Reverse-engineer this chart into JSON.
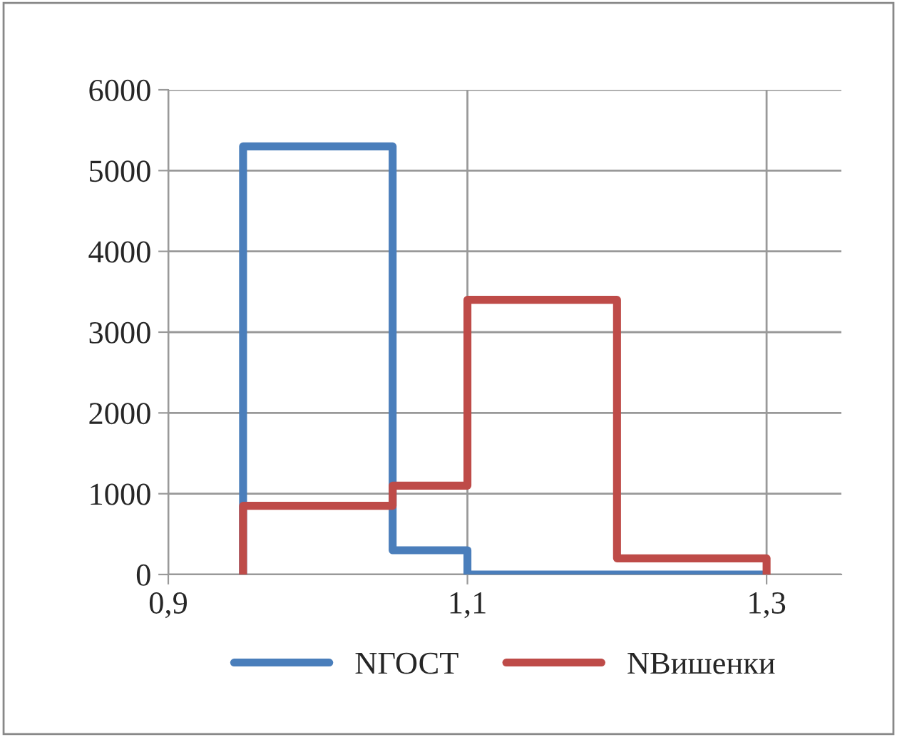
{
  "chart_data": {
    "type": "line",
    "series": [
      {
        "name": "NГОСТ",
        "color": "#4a7ebb",
        "x": [
          0.95,
          0.95,
          1.05,
          1.05,
          1.1,
          1.1,
          1.3
        ],
        "values": [
          0,
          5300,
          5300,
          300,
          300,
          0,
          0
        ]
      },
      {
        "name": "NВишенки",
        "color": "#be4b48",
        "x": [
          0.95,
          0.95,
          1.05,
          1.05,
          1.1,
          1.1,
          1.2,
          1.2,
          1.3,
          1.3
        ],
        "values": [
          0,
          850,
          850,
          1100,
          1100,
          3400,
          3400,
          200,
          200,
          0
        ]
      }
    ],
    "xlim": [
      0.9,
      1.35
    ],
    "xticks": [
      {
        "value": 0.9,
        "label": "0,9"
      },
      {
        "value": 1.1,
        "label": "1,1"
      },
      {
        "value": 1.3,
        "label": "1,3"
      }
    ],
    "ylim": [
      0,
      6000
    ],
    "yticks": [
      0,
      1000,
      2000,
      3000,
      4000,
      5000,
      6000
    ],
    "grid": true,
    "legend": "bottom",
    "marker": "none",
    "line_style": "solid"
  }
}
